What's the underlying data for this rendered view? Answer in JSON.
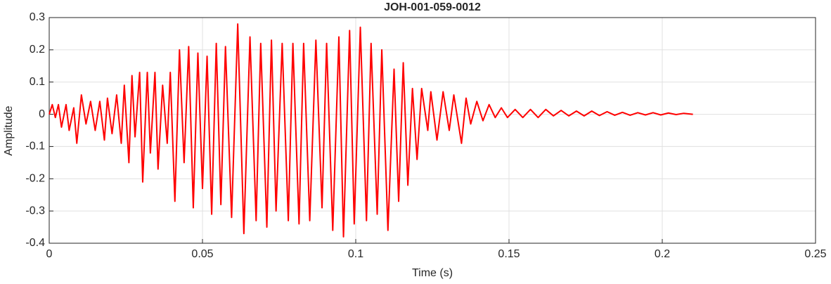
{
  "chart_data": {
    "type": "line",
    "title": "JOH-001-059-0012",
    "xlabel": "Time (s)",
    "ylabel": "Amplitude",
    "xlim": [
      0,
      0.25
    ],
    "xticks": [
      0,
      0.05,
      0.1,
      0.15,
      0.2,
      0.25
    ],
    "ylim": [
      -0.4,
      0.3
    ],
    "yticks": [
      -0.4,
      -0.3,
      -0.2,
      -0.1,
      0,
      0.1,
      0.2,
      0.3
    ],
    "grid": true,
    "x": [
      0,
      0.001,
      0.002,
      0.003,
      0.004,
      0.0055,
      0.0065,
      0.008,
      0.009,
      0.0105,
      0.012,
      0.0135,
      0.015,
      0.0165,
      0.018,
      0.019,
      0.0205,
      0.022,
      0.0235,
      0.0245,
      0.026,
      0.027,
      0.028,
      0.0295,
      0.0305,
      0.032,
      0.033,
      0.0345,
      0.0355,
      0.037,
      0.0385,
      0.0395,
      0.041,
      0.0425,
      0.044,
      0.0455,
      0.047,
      0.0485,
      0.05,
      0.0515,
      0.053,
      0.0545,
      0.056,
      0.0575,
      0.0595,
      0.0615,
      0.0635,
      0.0655,
      0.0675,
      0.069,
      0.071,
      0.0725,
      0.074,
      0.076,
      0.078,
      0.0795,
      0.0815,
      0.083,
      0.085,
      0.087,
      0.089,
      0.0905,
      0.0925,
      0.0945,
      0.096,
      0.098,
      0.0995,
      0.1015,
      0.1035,
      0.105,
      0.107,
      0.1085,
      0.1105,
      0.1125,
      0.114,
      0.1155,
      0.117,
      0.1185,
      0.12,
      0.1215,
      0.1235,
      0.1245,
      0.1265,
      0.1285,
      0.1305,
      0.132,
      0.1345,
      0.136,
      0.1375,
      0.1395,
      0.1415,
      0.1435,
      0.1455,
      0.1475,
      0.1495,
      0.152,
      0.1545,
      0.157,
      0.1595,
      0.162,
      0.1645,
      0.167,
      0.1695,
      0.172,
      0.1745,
      0.177,
      0.1795,
      0.182,
      0.1845,
      0.187,
      0.1895,
      0.192,
      0.1945,
      0.197,
      0.1995,
      0.202,
      0.2045,
      0.207,
      0.21
    ],
    "series": [
      {
        "name": "Amplitude",
        "color": "#ff0000",
        "values": [
          0,
          0.03,
          -0.01,
          0.03,
          -0.04,
          0.03,
          -0.05,
          0.02,
          -0.09,
          0.06,
          -0.03,
          0.04,
          -0.05,
          0.04,
          -0.08,
          0.05,
          -0.06,
          0.06,
          -0.09,
          0.09,
          -0.15,
          0.12,
          -0.07,
          0.13,
          -0.21,
          0.13,
          -0.12,
          0.13,
          -0.17,
          0.09,
          -0.09,
          0.13,
          -0.27,
          0.2,
          -0.15,
          0.21,
          -0.29,
          0.19,
          -0.23,
          0.18,
          -0.31,
          0.22,
          -0.28,
          0.21,
          -0.32,
          0.28,
          -0.37,
          0.24,
          -0.33,
          0.22,
          -0.35,
          0.23,
          -0.3,
          0.22,
          -0.33,
          0.22,
          -0.34,
          0.22,
          -0.33,
          0.23,
          -0.29,
          0.22,
          -0.36,
          0.24,
          -0.38,
          0.26,
          -0.34,
          0.27,
          -0.33,
          0.22,
          -0.31,
          0.2,
          -0.36,
          0.14,
          -0.27,
          0.16,
          -0.22,
          0.08,
          -0.14,
          0.08,
          -0.05,
          0.07,
          -0.08,
          0.07,
          -0.05,
          0.06,
          -0.09,
          0.05,
          -0.03,
          0.04,
          -0.02,
          0.03,
          -0.01,
          0.02,
          -0.01,
          0.015,
          -0.01,
          0.015,
          -0.01,
          0.015,
          -0.005,
          0.012,
          -0.005,
          0.01,
          -0.005,
          0.01,
          -0.004,
          0.008,
          -0.003,
          0.006,
          -0.003,
          0.005,
          -0.002,
          0.005,
          -0.002,
          0.004,
          -0.001,
          0.003,
          0
        ]
      }
    ]
  }
}
